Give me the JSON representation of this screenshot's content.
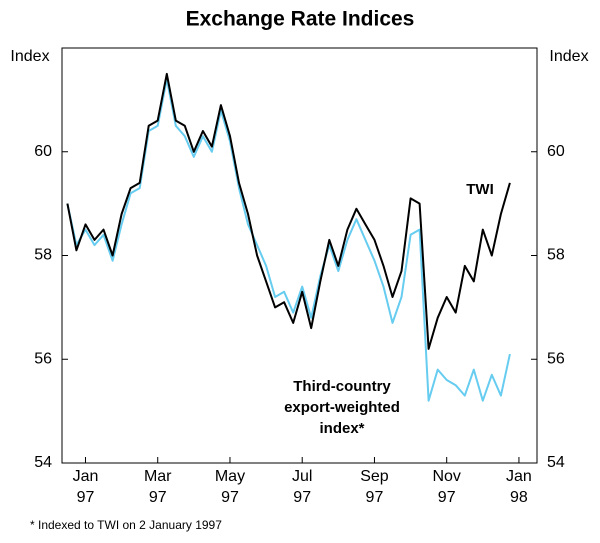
{
  "chart_data": {
    "type": "line",
    "title": "Exchange Rate Indices",
    "ylabel": "Index",
    "y2label": "Index",
    "footnote": "*   Indexed to TWI on 2 January 1997",
    "xlim": [
      -0.15,
      13.0
    ],
    "xticks": [
      {
        "value": 0.5,
        "label": [
          "Jan",
          "97"
        ]
      },
      {
        "value": 2.5,
        "label": [
          "Mar",
          "97"
        ]
      },
      {
        "value": 4.5,
        "label": [
          "May",
          "97"
        ]
      },
      {
        "value": 6.5,
        "label": [
          "Jul",
          "97"
        ]
      },
      {
        "value": 8.5,
        "label": [
          "Sep",
          "97"
        ]
      },
      {
        "value": 10.5,
        "label": [
          "Nov",
          "97"
        ]
      },
      {
        "value": 12.5,
        "label": [
          "Jan",
          "98"
        ]
      }
    ],
    "ylim": [
      54,
      62
    ],
    "yticks": [
      54,
      56,
      58,
      60
    ],
    "x": [
      0,
      0.25,
      0.5,
      0.75,
      1,
      1.25,
      1.5,
      1.75,
      2,
      2.25,
      2.5,
      2.75,
      3,
      3.25,
      3.5,
      3.75,
      4,
      4.25,
      4.5,
      4.75,
      5,
      5.25,
      5.5,
      5.75,
      6,
      6.25,
      6.5,
      6.75,
      7,
      7.25,
      7.5,
      7.75,
      8,
      8.25,
      8.5,
      8.75,
      9,
      9.25,
      9.5,
      9.75,
      10,
      10.25,
      10.5,
      10.75,
      11,
      11.25,
      11.5,
      11.75,
      12,
      12.25
    ],
    "series": [
      {
        "name": "TWI",
        "color": "#000000",
        "values": [
          59.0,
          58.1,
          58.6,
          58.3,
          58.5,
          58.0,
          58.8,
          59.3,
          59.4,
          60.5,
          60.6,
          61.5,
          60.6,
          60.5,
          60.0,
          60.4,
          60.1,
          60.9,
          60.3,
          59.4,
          58.8,
          58.0,
          57.5,
          57.0,
          57.1,
          56.7,
          57.3,
          56.6,
          57.5,
          58.3,
          57.8,
          58.5,
          58.9,
          58.6,
          58.3,
          57.8,
          57.2,
          57.7,
          59.1,
          59.0,
          56.2,
          56.8,
          57.2,
          56.9,
          57.8,
          57.5,
          58.5,
          58.0,
          58.8,
          59.4
        ]
      },
      {
        "name": "Third-country export-weighted index*",
        "color": "#66ccf0",
        "values": [
          59.0,
          58.2,
          58.5,
          58.2,
          58.4,
          57.9,
          58.6,
          59.2,
          59.3,
          60.4,
          60.5,
          61.4,
          60.5,
          60.3,
          59.9,
          60.3,
          60.0,
          60.8,
          60.2,
          59.3,
          58.6,
          58.2,
          57.8,
          57.2,
          57.3,
          56.9,
          57.4,
          56.8,
          57.6,
          58.2,
          57.7,
          58.3,
          58.7,
          58.3,
          57.9,
          57.4,
          56.7,
          57.2,
          58.4,
          58.5,
          55.2,
          55.8,
          55.6,
          55.5,
          55.3,
          55.8,
          55.2,
          55.7,
          55.3,
          56.1
        ]
      }
    ],
    "annotations": [
      {
        "text": [
          "TWI"
        ],
        "series": 0
      },
      {
        "text": [
          "Third-country",
          "export-weighted",
          "index*"
        ],
        "series": 1
      }
    ]
  }
}
